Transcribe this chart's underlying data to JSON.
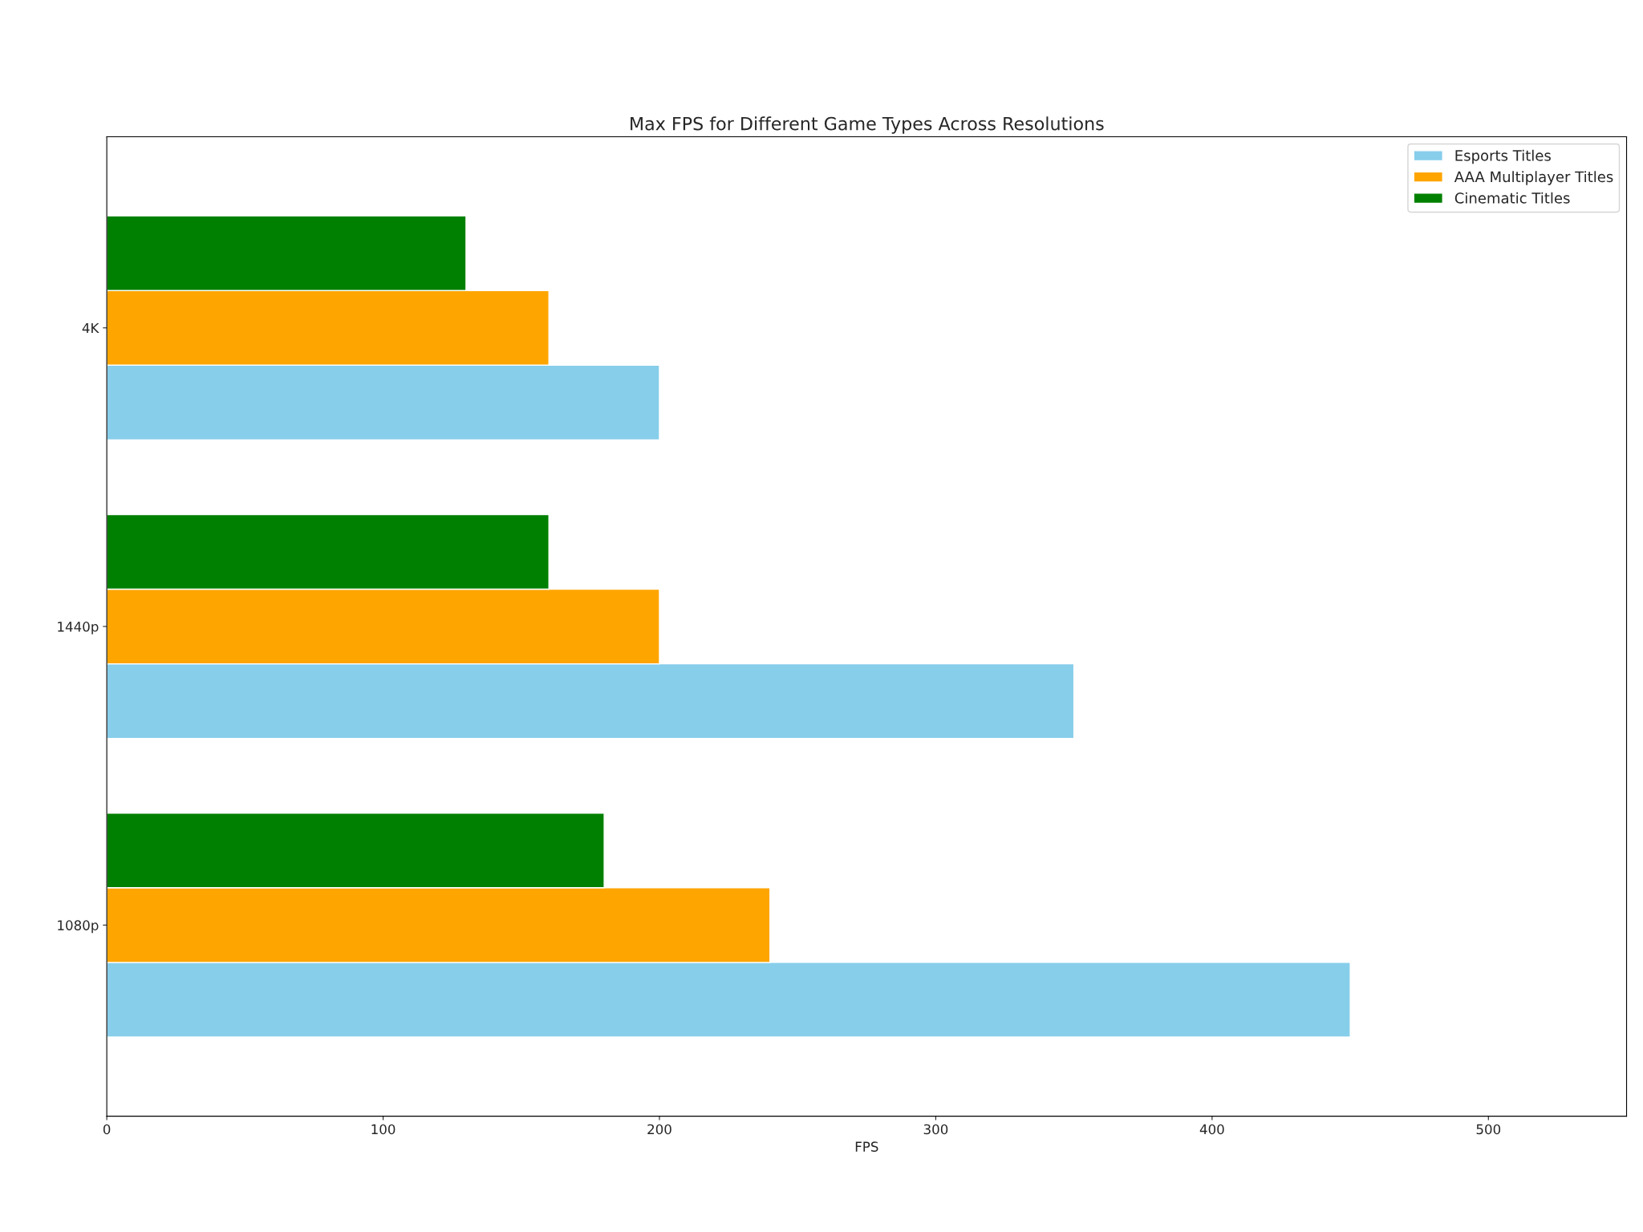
{
  "chart_data": {
    "type": "bar",
    "orientation": "horizontal",
    "title": "Max FPS for Different Game Types Across Resolutions",
    "xlabel": "FPS",
    "categories": [
      "4K",
      "1440p",
      "1080p"
    ],
    "series": [
      {
        "name": "Esports Titles",
        "color": "#87ceeb",
        "values": [
          200,
          350,
          450
        ]
      },
      {
        "name": "AAA Multiplayer Titles",
        "color": "#ffa500",
        "values": [
          160,
          200,
          240
        ]
      },
      {
        "name": "Cinematic Titles",
        "color": "#008000",
        "values": [
          130,
          160,
          180
        ]
      }
    ],
    "xlim": [
      0,
      550
    ],
    "xticks": [
      0,
      100,
      200,
      300,
      400,
      500
    ],
    "grid": false,
    "legend": "top right"
  }
}
